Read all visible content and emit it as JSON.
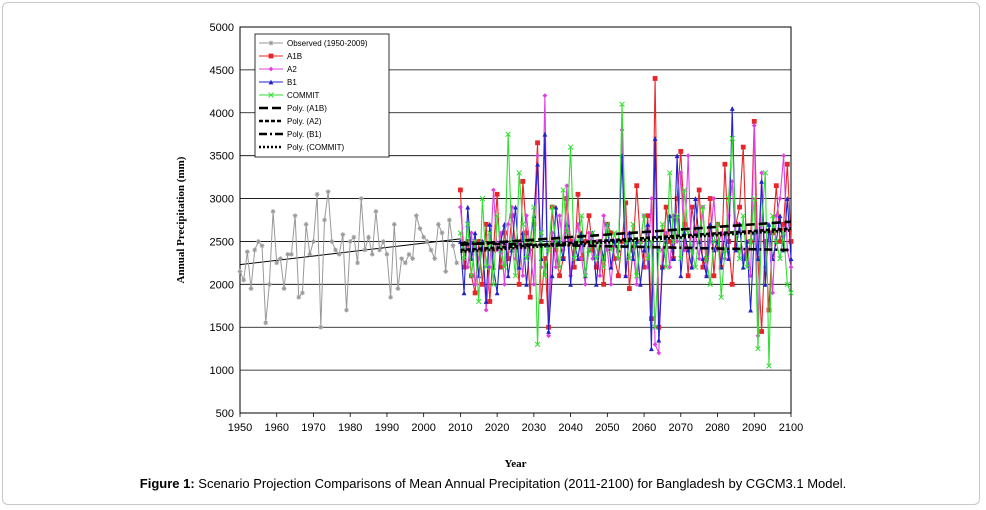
{
  "caption": {
    "lead": "Figure 1:",
    "text": " Scenario Projection Comparisons of Mean Annual Precipitation (2011-2100) for Bangladesh by CGCM3.1 Model."
  },
  "chart_data": {
    "type": "line",
    "title": "",
    "xlabel": "Year",
    "ylabel": "Annual Precipitation (mm)",
    "xlim": [
      1950,
      2100
    ],
    "ylim": [
      500,
      5000
    ],
    "x_ticks": [
      "1950",
      "1960",
      "1970",
      "1980",
      "1990",
      "2000",
      "2010",
      "2020",
      "2030",
      "2040",
      "2050",
      "2060",
      "2070",
      "2080",
      "2090",
      "2100"
    ],
    "y_ticks": [
      "500",
      "1000",
      "1500",
      "2000",
      "2500",
      "3000",
      "3500",
      "4000",
      "4500",
      "5000"
    ],
    "grid": "horizontal",
    "legend_position": "top-left",
    "series": [
      {
        "name": "Observed (1950-2009)",
        "color": "#999999",
        "marker": "star",
        "x": [
          1950,
          1951,
          1952,
          1953,
          1954,
          1955,
          1956,
          1957,
          1958,
          1959,
          1960,
          1961,
          1962,
          1963,
          1964,
          1965,
          1966,
          1967,
          1968,
          1969,
          1970,
          1971,
          1972,
          1973,
          1974,
          1975,
          1976,
          1977,
          1978,
          1979,
          1980,
          1981,
          1982,
          1983,
          1984,
          1985,
          1986,
          1987,
          1988,
          1989,
          1990,
          1991,
          1992,
          1993,
          1994,
          1995,
          1996,
          1997,
          1998,
          1999,
          2000,
          2001,
          2002,
          2003,
          2004,
          2005,
          2006,
          2007,
          2008,
          2009
        ],
        "y": [
          2150,
          2050,
          2380,
          1950,
          2400,
          2500,
          2450,
          1550,
          2000,
          2850,
          2250,
          2300,
          1950,
          2350,
          2350,
          2800,
          1850,
          1900,
          2700,
          2350,
          2500,
          3050,
          1500,
          2750,
          3080,
          2500,
          2400,
          2350,
          2580,
          1700,
          2500,
          2550,
          2250,
          3000,
          2400,
          2550,
          2350,
          2850,
          2400,
          2500,
          2350,
          1850,
          2700,
          1950,
          2300,
          2250,
          2350,
          2300,
          2800,
          2650,
          2550,
          2500,
          2400,
          2300,
          2700,
          2600,
          2150,
          2750,
          2450,
          2250
        ]
      },
      {
        "name": "A1B",
        "color": "#e8262a",
        "marker": "square",
        "x": [
          2010,
          2011,
          2012,
          2013,
          2014,
          2015,
          2016,
          2017,
          2018,
          2019,
          2020,
          2021,
          2022,
          2023,
          2024,
          2025,
          2026,
          2027,
          2028,
          2029,
          2030,
          2031,
          2032,
          2033,
          2034,
          2035,
          2036,
          2037,
          2038,
          2039,
          2040,
          2041,
          2042,
          2043,
          2044,
          2045,
          2046,
          2047,
          2048,
          2049,
          2050,
          2051,
          2052,
          2053,
          2054,
          2055,
          2056,
          2057,
          2058,
          2059,
          2060,
          2061,
          2062,
          2063,
          2064,
          2065,
          2066,
          2067,
          2068,
          2069,
          2070,
          2071,
          2072,
          2073,
          2074,
          2075,
          2076,
          2077,
          2078,
          2079,
          2080,
          2081,
          2082,
          2083,
          2084,
          2085,
          2086,
          2087,
          2088,
          2089,
          2090,
          2091,
          2092,
          2093,
          2094,
          2095,
          2096,
          2097,
          2098,
          2099,
          2100
        ],
        "y": [
          3100,
          2200,
          2500,
          2100,
          1900,
          2500,
          2000,
          2700,
          1800,
          2400,
          3050,
          2200,
          2600,
          2300,
          2800,
          2500,
          2000,
          3200,
          2600,
          1850,
          2700,
          3650,
          1800,
          2300,
          1500,
          2900,
          2400,
          2100,
          2300,
          3000,
          2500,
          2200,
          3050,
          2300,
          2500,
          2800,
          2400,
          2200,
          2500,
          2000,
          2700,
          2600,
          2300,
          2100,
          2500,
          2950,
          1950,
          2400,
          3150,
          2500,
          2200,
          2800,
          1600,
          4400,
          1500,
          2200,
          2900,
          2500,
          2300,
          3000,
          3550,
          2700,
          2100,
          2900,
          2600,
          3100,
          2200,
          2300,
          3000,
          2100,
          2700,
          2200,
          3400,
          2500,
          2000,
          2700,
          2900,
          3600,
          2300,
          2500,
          3900,
          2300,
          1450,
          2500,
          1700,
          2600,
          3150,
          2500,
          2700,
          3400,
          2500
        ]
      },
      {
        "name": "A2",
        "color": "#e040e0",
        "marker": "diamond",
        "x": [
          2010,
          2011,
          2012,
          2013,
          2014,
          2015,
          2016,
          2017,
          2018,
          2019,
          2020,
          2021,
          2022,
          2023,
          2024,
          2025,
          2026,
          2027,
          2028,
          2029,
          2030,
          2031,
          2032,
          2033,
          2034,
          2035,
          2036,
          2037,
          2038,
          2039,
          2040,
          2041,
          2042,
          2043,
          2044,
          2045,
          2046,
          2047,
          2048,
          2049,
          2050,
          2051,
          2052,
          2053,
          2054,
          2055,
          2056,
          2057,
          2058,
          2059,
          2060,
          2061,
          2062,
          2063,
          2064,
          2065,
          2066,
          2067,
          2068,
          2069,
          2070,
          2071,
          2072,
          2073,
          2074,
          2075,
          2076,
          2077,
          2078,
          2079,
          2080,
          2081,
          2082,
          2083,
          2084,
          2085,
          2086,
          2087,
          2088,
          2089,
          2090,
          2091,
          2092,
          2093,
          2094,
          2095,
          2096,
          2097,
          2098,
          2099,
          2100
        ],
        "y": [
          2900,
          2400,
          2200,
          2600,
          2000,
          2300,
          2500,
          1700,
          2200,
          3100,
          2400,
          2600,
          2000,
          2700,
          2900,
          2300,
          2500,
          2100,
          2800,
          2400,
          2000,
          3500,
          2200,
          4200,
          1400,
          2600,
          2200,
          2800,
          2400,
          3150,
          2100,
          2500,
          2700,
          2300,
          2000,
          2600,
          2300,
          2500,
          2100,
          2800,
          2400,
          2000,
          2500,
          2300,
          3800,
          2100,
          2600,
          2400,
          2000,
          2500,
          2800,
          2200,
          3000,
          1300,
          1200,
          2400,
          2600,
          2200,
          2800,
          2500,
          3300,
          2400,
          3500,
          2200,
          2600,
          2300,
          2900,
          2100,
          2500,
          3000,
          2400,
          2600,
          2300,
          2800,
          3200,
          2400,
          2700,
          2300,
          2500,
          2100,
          3850,
          1400,
          3300,
          2200,
          2600,
          1900,
          2800,
          3000,
          3500,
          2400,
          2200
        ]
      },
      {
        "name": "B1",
        "color": "#2222cc",
        "marker": "triangle",
        "x": [
          2010,
          2011,
          2012,
          2013,
          2014,
          2015,
          2016,
          2017,
          2018,
          2019,
          2020,
          2021,
          2022,
          2023,
          2024,
          2025,
          2026,
          2027,
          2028,
          2029,
          2030,
          2031,
          2032,
          2033,
          2034,
          2035,
          2036,
          2037,
          2038,
          2039,
          2040,
          2041,
          2042,
          2043,
          2044,
          2045,
          2046,
          2047,
          2048,
          2049,
          2050,
          2051,
          2052,
          2053,
          2054,
          2055,
          2056,
          2057,
          2058,
          2059,
          2060,
          2061,
          2062,
          2063,
          2064,
          2065,
          2066,
          2067,
          2068,
          2069,
          2070,
          2071,
          2072,
          2073,
          2074,
          2075,
          2076,
          2077,
          2078,
          2079,
          2080,
          2081,
          2082,
          2083,
          2084,
          2085,
          2086,
          2087,
          2088,
          2089,
          2090,
          2091,
          2092,
          2093,
          2094,
          2095,
          2096,
          2097,
          2098,
          2099,
          2100
        ],
        "y": [
          2500,
          1900,
          2900,
          2300,
          2600,
          2100,
          2500,
          1800,
          2700,
          2200,
          1900,
          2500,
          2700,
          2100,
          2400,
          2900,
          2200,
          2600,
          2000,
          2500,
          2800,
          3400,
          2300,
          3750,
          1450,
          2100,
          2900,
          2500,
          2300,
          2700,
          2000,
          2500,
          2300,
          2600,
          2100,
          2400,
          2600,
          2000,
          2500,
          2300,
          2700,
          2200,
          2500,
          2400,
          3500,
          2100,
          2600,
          2300,
          2500,
          2000,
          2400,
          2700,
          1250,
          3700,
          1350,
          2200,
          2500,
          2800,
          2300,
          3500,
          2100,
          2600,
          2400,
          2200,
          3000,
          2500,
          2300,
          2100,
          2700,
          2400,
          2500,
          2200,
          2600,
          2300,
          4050,
          2400,
          2700,
          2200,
          2500,
          1700,
          2600,
          2300,
          3200,
          2000,
          2700,
          2300,
          2500,
          2800,
          2400,
          3000,
          2300
        ]
      },
      {
        "name": "COMMIT",
        "color": "#33dd33",
        "marker": "x",
        "x": [
          2010,
          2011,
          2012,
          2013,
          2014,
          2015,
          2016,
          2017,
          2018,
          2019,
          2020,
          2021,
          2022,
          2023,
          2024,
          2025,
          2026,
          2027,
          2028,
          2029,
          2030,
          2031,
          2032,
          2033,
          2034,
          2035,
          2036,
          2037,
          2038,
          2039,
          2040,
          2041,
          2042,
          2043,
          2044,
          2045,
          2046,
          2047,
          2048,
          2049,
          2050,
          2051,
          2052,
          2053,
          2054,
          2055,
          2056,
          2057,
          2058,
          2059,
          2060,
          2061,
          2062,
          2063,
          2064,
          2065,
          2066,
          2067,
          2068,
          2069,
          2070,
          2071,
          2072,
          2073,
          2074,
          2075,
          2076,
          2077,
          2078,
          2079,
          2080,
          2081,
          2082,
          2083,
          2084,
          2085,
          2086,
          2087,
          2088,
          2089,
          2090,
          2091,
          2092,
          2093,
          2094,
          2095,
          2096,
          2097,
          2098,
          2099,
          2100
        ],
        "y": [
          2600,
          2300,
          2700,
          2100,
          2500,
          1800,
          3000,
          2200,
          2600,
          2000,
          2800,
          2400,
          2200,
          3750,
          2500,
          2100,
          3300,
          2700,
          2300,
          2500,
          2900,
          1300,
          2600,
          2100,
          2400,
          2900,
          2500,
          2200,
          3100,
          2600,
          3600,
          2300,
          2500,
          2800,
          2100,
          2400,
          2600,
          2300,
          2500,
          2200,
          2700,
          2400,
          2600,
          2300,
          4100,
          2500,
          2300,
          2700,
          2100,
          2500,
          2800,
          2300,
          2500,
          1500,
          2400,
          2700,
          2200,
          3300,
          2500,
          2800,
          2300,
          3100,
          2600,
          2400,
          2200,
          2600,
          2900,
          2300,
          2000,
          2500,
          2700,
          1850,
          2400,
          3000,
          3700,
          2600,
          2300,
          2800,
          2200,
          2500,
          3000,
          1250,
          2700,
          3300,
          1050,
          2800,
          2500,
          2300,
          2600,
          2000,
          1900
        ]
      }
    ],
    "trend_lines": [
      {
        "name": "Poly. (A1B)",
        "style": "long-dash",
        "x": [
          2010,
          2100
        ],
        "y": [
          2460,
          2730
        ]
      },
      {
        "name": "Poly. (A2)",
        "style": "short-dash",
        "x": [
          2010,
          2100
        ],
        "y": [
          2400,
          2650
        ]
      },
      {
        "name": "Poly. (B1)",
        "style": "dash-dot",
        "x": [
          2010,
          2100
        ],
        "y": [
          2480,
          2400
        ]
      },
      {
        "name": "Poly. (COMMIT)",
        "style": "dotted",
        "x": [
          2010,
          2100
        ],
        "y": [
          2380,
          2630
        ]
      }
    ],
    "observed_trend": {
      "x": [
        1950,
        2010
      ],
      "y": [
        2230,
        2530
      ]
    }
  }
}
